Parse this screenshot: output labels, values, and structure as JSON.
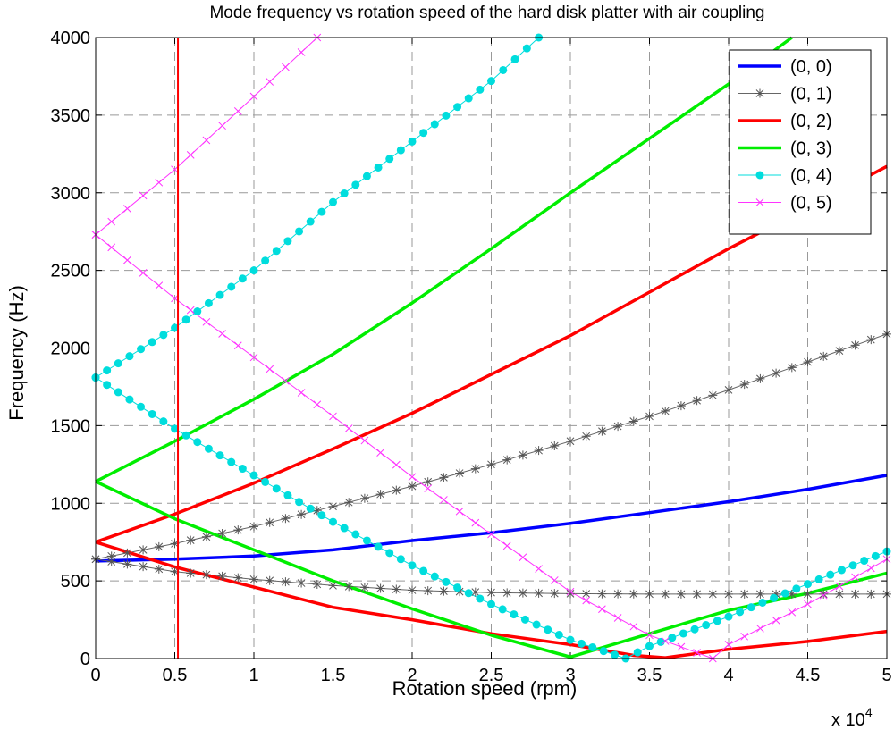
{
  "chart_data": {
    "type": "line",
    "title": "Mode frequency vs rotation speed of the hard disk platter with air coupling",
    "xlabel": "Rotation speed (rpm)",
    "ylabel": "Frequency (Hz)",
    "x_multiplier_label": "x 10",
    "x_multiplier_exponent": "4",
    "xlim": [
      0,
      5
    ],
    "ylim": [
      0,
      4000
    ],
    "grid": true,
    "legend_position": "top-right",
    "x_ticks": [
      0,
      0.5,
      1,
      1.5,
      2,
      2.5,
      3,
      3.5,
      4,
      4.5,
      5
    ],
    "x_tick_labels": [
      "0",
      "0.5",
      "1",
      "1.5",
      "2",
      "2.5",
      "3",
      "3.5",
      "4",
      "4.5",
      "5"
    ],
    "y_ticks": [
      0,
      500,
      1000,
      1500,
      2000,
      2500,
      3000,
      3500,
      4000
    ],
    "y_tick_labels": [
      "0",
      "500",
      "1000",
      "1500",
      "2000",
      "2500",
      "3000",
      "3500",
      "4000"
    ],
    "vertical_line": {
      "x": 0.52,
      "color": "#ff0000"
    },
    "series": [
      {
        "name": "(0, 0)",
        "color": "#0000ff",
        "marker": "none",
        "branches": [
          {
            "x": [
              0,
              0.5,
              1,
              1.5,
              2,
              2.5,
              3,
              3.5,
              4,
              4.5,
              5
            ],
            "y": [
              628,
              640,
              660,
              700,
              760,
              810,
              870,
              940,
              1010,
              1090,
              1180
            ]
          }
        ]
      },
      {
        "name": "(0, 1)",
        "color": "#555555",
        "marker": "star",
        "branches": [
          {
            "x": [
              0,
              0.5,
              1,
              1.5,
              2,
              2.5,
              3,
              3.5,
              4,
              4.5,
              5
            ],
            "y": [
              640,
              740,
              850,
              980,
              1110,
              1250,
              1400,
              1560,
              1730,
              1910,
              2090
            ]
          },
          {
            "x": [
              0,
              0.5,
              1,
              1.5,
              2,
              2.5,
              3,
              3.5,
              4,
              4.5,
              5
            ],
            "y": [
              640,
              560,
              510,
              470,
              440,
              425,
              418,
              415,
              415,
              415,
              415
            ]
          }
        ]
      },
      {
        "name": "(0, 2)",
        "color": "#ff0000",
        "marker": "none",
        "branches": [
          {
            "x": [
              0,
              0.5,
              1,
              1.5,
              2,
              2.5,
              3,
              3.5,
              4,
              4.5,
              5
            ],
            "y": [
              750,
              930,
              1130,
              1350,
              1580,
              1830,
              2080,
              2360,
              2640,
              2900,
              3170
            ]
          },
          {
            "x": [
              0,
              0.5,
              1,
              1.5,
              2,
              2.5,
              3,
              3.4,
              3.6,
              4,
              4.5,
              5
            ],
            "y": [
              750,
              590,
              460,
              330,
              250,
              160,
              90,
              20,
              5,
              60,
              110,
              175
            ]
          }
        ]
      },
      {
        "name": "(0, 3)",
        "color": "#00ee00",
        "marker": "none",
        "branches": [
          {
            "x": [
              0,
              0.5,
              1,
              1.5,
              2,
              2.5,
              3,
              3.5,
              4,
              4.4
            ],
            "y": [
              1140,
              1400,
              1670,
              1960,
              2290,
              2640,
              3000,
              3350,
              3700,
              4000
            ]
          },
          {
            "x": [
              0,
              0.5,
              1,
              1.5,
              2,
              2.5,
              3,
              3.5,
              4,
              4.5,
              5
            ],
            "y": [
              1140,
              900,
              700,
              500,
              320,
              150,
              10,
              160,
              310,
              420,
              550
            ]
          }
        ]
      },
      {
        "name": "(0, 4)",
        "color": "#00dddd",
        "marker": "dot",
        "branches": [
          {
            "x": [
              0,
              0.5,
              1,
              1.5,
              2,
              2.5,
              2.8
            ],
            "y": [
              1810,
              2130,
              2500,
              2940,
              3330,
              3720,
              4000
            ]
          },
          {
            "x": [
              0,
              0.5,
              1,
              1.5,
              2,
              2.5,
              3,
              3.35,
              3.5,
              4,
              4.5,
              5
            ],
            "y": [
              1810,
              1480,
              1180,
              880,
              600,
              350,
              120,
              0,
              80,
              270,
              480,
              690
            ]
          }
        ]
      },
      {
        "name": "(0, 5)",
        "color": "#ff33ff",
        "marker": "x",
        "branches": [
          {
            "x": [
              0,
              0.5,
              1,
              1.4
            ],
            "y": [
              2730,
              3150,
              3620,
              4000
            ]
          },
          {
            "x": [
              0,
              0.5,
              1,
              1.5,
              2,
              2.5,
              3,
              3.5,
              3.9,
              4,
              4.5,
              5
            ],
            "y": [
              2730,
              2320,
              1940,
              1560,
              1170,
              800,
              430,
              150,
              0,
              90,
              350,
              640
            ]
          }
        ]
      }
    ]
  }
}
